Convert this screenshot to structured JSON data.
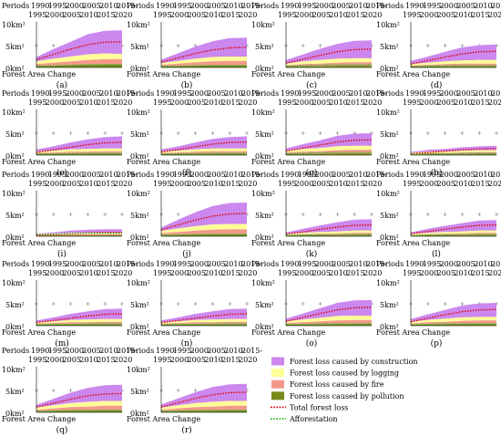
{
  "header": {
    "periods_label": "Periods",
    "period_ticks": [
      [
        "1990-",
        "1995"
      ],
      [
        "1995-",
        "2000"
      ],
      [
        "2000-",
        "2005"
      ],
      [
        "2005-",
        "2010"
      ],
      [
        "2010-",
        "2015"
      ],
      [
        "2015-",
        "2020"
      ]
    ]
  },
  "y_tick_labels": [
    "10km²",
    "5km²",
    "0km²"
  ],
  "x_axis_label": "Forest Area Change",
  "legend": {
    "position": "bottom-right",
    "entries": [
      {
        "label": "Forest loss caused by construction",
        "color": "#cc88ee",
        "kind": "area"
      },
      {
        "label": "Forest loss caused by logging",
        "color": "#ffff99",
        "kind": "area"
      },
      {
        "label": "Forest loss caused by fire",
        "color": "#f29a8a",
        "kind": "area"
      },
      {
        "label": "Forest loss caused by pollution",
        "color": "#7a8a1a",
        "kind": "area"
      },
      {
        "label": "Total forest loss",
        "color": "#dd0000",
        "kind": "dotted-line"
      },
      {
        "label": "Afforestation",
        "color": "#22bb22",
        "kind": "dotted-line"
      }
    ]
  },
  "chart_data": {
    "type": "area",
    "ylim": [
      0,
      10
    ],
    "series_names": [
      "Forest loss caused by pollution",
      "Forest loss caused by fire",
      "Forest loss caused by logging",
      "Forest loss caused by construction"
    ],
    "panels": [
      {
        "label": "(a)",
        "pollution": [
          0.3,
          0.4,
          0.5,
          0.6,
          0.7,
          0.7
        ],
        "fire": [
          0.5,
          0.7,
          0.9,
          1.1,
          1.2,
          1.2
        ],
        "logging": [
          0.6,
          0.9,
          1.1,
          1.3,
          1.3,
          1.2
        ],
        "construction": [
          1.0,
          2.2,
          3.4,
          4.6,
          5.2,
          5.4
        ],
        "total": [
          1.8,
          3.0,
          4.2,
          5.2,
          5.8,
          5.9
        ],
        "afforestation": [
          0.3,
          0.4,
          0.5,
          0.6,
          0.6,
          0.6
        ]
      },
      {
        "label": "(b)",
        "pollution": [
          0.2,
          0.3,
          0.4,
          0.5,
          0.5,
          0.5
        ],
        "fire": [
          0.4,
          0.6,
          0.8,
          0.9,
          1.0,
          1.0
        ],
        "logging": [
          0.4,
          0.6,
          0.8,
          1.0,
          1.0,
          1.0
        ],
        "construction": [
          0.8,
          1.8,
          2.8,
          3.6,
          4.2,
          4.3
        ],
        "total": [
          1.2,
          2.2,
          3.2,
          4.0,
          4.5,
          4.6
        ],
        "afforestation": [
          0.2,
          0.3,
          0.4,
          0.4,
          0.4,
          0.4
        ]
      },
      {
        "label": "(c)",
        "pollution": [
          0.2,
          0.3,
          0.3,
          0.4,
          0.4,
          0.4
        ],
        "fire": [
          0.3,
          0.5,
          0.6,
          0.7,
          0.8,
          0.8
        ],
        "logging": [
          0.4,
          0.6,
          0.8,
          0.9,
          0.9,
          0.9
        ],
        "construction": [
          0.8,
          1.6,
          2.6,
          3.4,
          4.0,
          4.1
        ],
        "total": [
          1.0,
          1.9,
          2.8,
          3.6,
          4.1,
          4.2
        ],
        "afforestation": [
          0.3,
          0.4,
          0.5,
          0.6,
          0.6,
          0.6
        ]
      },
      {
        "label": "(d)",
        "pollution": [
          0.2,
          0.2,
          0.3,
          0.3,
          0.3,
          0.3
        ],
        "fire": [
          0.3,
          0.4,
          0.5,
          0.6,
          0.6,
          0.6
        ],
        "logging": [
          0.3,
          0.5,
          0.6,
          0.7,
          0.8,
          0.8
        ],
        "construction": [
          0.7,
          1.4,
          2.2,
          3.0,
          3.4,
          3.6
        ],
        "total": [
          0.8,
          1.6,
          2.4,
          3.1,
          3.6,
          3.7
        ],
        "afforestation": [
          0.2,
          0.3,
          0.4,
          0.4,
          0.4,
          0.4
        ]
      },
      {
        "label": "(e)",
        "pollution": [
          0.2,
          0.2,
          0.3,
          0.3,
          0.3,
          0.3
        ],
        "fire": [
          0.3,
          0.4,
          0.5,
          0.5,
          0.6,
          0.6
        ],
        "logging": [
          0.3,
          0.4,
          0.5,
          0.6,
          0.6,
          0.6
        ],
        "construction": [
          0.5,
          1.0,
          1.6,
          2.2,
          2.6,
          2.8
        ],
        "total": [
          0.6,
          1.2,
          1.8,
          2.4,
          2.8,
          2.9
        ],
        "afforestation": [
          0.2,
          0.3,
          0.3,
          0.4,
          0.4,
          0.4
        ]
      },
      {
        "label": "(f)",
        "pollution": [
          0.2,
          0.2,
          0.3,
          0.3,
          0.3,
          0.3
        ],
        "fire": [
          0.3,
          0.4,
          0.5,
          0.6,
          0.6,
          0.6
        ],
        "logging": [
          0.3,
          0.4,
          0.5,
          0.6,
          0.6,
          0.6
        ],
        "construction": [
          0.5,
          1.0,
          1.6,
          2.2,
          2.6,
          2.8
        ],
        "total": [
          0.7,
          1.3,
          1.9,
          2.5,
          2.9,
          3.0
        ],
        "afforestation": [
          0.2,
          0.3,
          0.3,
          0.4,
          0.4,
          0.4
        ]
      },
      {
        "label": "(g)",
        "pollution": [
          0.2,
          0.3,
          0.3,
          0.4,
          0.4,
          0.4
        ],
        "fire": [
          0.4,
          0.5,
          0.6,
          0.7,
          0.8,
          0.8
        ],
        "logging": [
          0.4,
          0.6,
          0.7,
          0.9,
          0.9,
          0.9
        ],
        "construction": [
          0.5,
          1.1,
          1.8,
          2.4,
          2.8,
          2.9
        ],
        "total": [
          0.9,
          1.6,
          2.3,
          3.0,
          3.4,
          3.5
        ],
        "afforestation": [
          0.3,
          0.4,
          0.5,
          0.6,
          0.6,
          0.6
        ]
      },
      {
        "label": "(h)",
        "pollution": [
          0.1,
          0.2,
          0.2,
          0.2,
          0.3,
          0.3
        ],
        "fire": [
          0.2,
          0.3,
          0.3,
          0.4,
          0.4,
          0.4
        ],
        "logging": [
          0.2,
          0.3,
          0.3,
          0.4,
          0.4,
          0.4
        ],
        "construction": [
          0.2,
          0.4,
          0.6,
          0.8,
          0.9,
          1.0
        ],
        "total": [
          0.3,
          0.6,
          0.9,
          1.2,
          1.4,
          1.5
        ],
        "afforestation": [
          0.2,
          0.3,
          0.3,
          0.4,
          0.4,
          0.4
        ]
      },
      {
        "label": "(i)",
        "pollution": [
          0.1,
          0.2,
          0.2,
          0.2,
          0.2,
          0.2
        ],
        "fire": [
          0.2,
          0.2,
          0.3,
          0.3,
          0.3,
          0.3
        ],
        "logging": [
          0.2,
          0.2,
          0.3,
          0.3,
          0.3,
          0.3
        ],
        "construction": [
          0.1,
          0.3,
          0.5,
          0.7,
          0.8,
          0.8
        ],
        "total": [
          0.2,
          0.4,
          0.6,
          0.8,
          0.9,
          0.9
        ],
        "afforestation": [
          0.4,
          0.5,
          0.6,
          0.7,
          0.7,
          0.7
        ]
      },
      {
        "label": "(j)",
        "pollution": [
          0.2,
          0.3,
          0.4,
          0.5,
          0.5,
          0.5
        ],
        "fire": [
          0.5,
          0.7,
          0.9,
          1.0,
          1.1,
          1.1
        ],
        "logging": [
          0.5,
          0.8,
          1.0,
          1.2,
          1.2,
          1.2
        ],
        "construction": [
          0.8,
          2.0,
          3.2,
          4.2,
          4.8,
          4.9
        ],
        "total": [
          1.5,
          2.6,
          3.7,
          4.6,
          5.1,
          5.2
        ],
        "afforestation": [
          0.2,
          0.3,
          0.4,
          0.4,
          0.4,
          0.4
        ]
      },
      {
        "label": "(k)",
        "pollution": [
          0.1,
          0.2,
          0.2,
          0.2,
          0.3,
          0.3
        ],
        "fire": [
          0.2,
          0.3,
          0.4,
          0.4,
          0.5,
          0.5
        ],
        "logging": [
          0.2,
          0.3,
          0.4,
          0.5,
          0.5,
          0.5
        ],
        "construction": [
          0.4,
          0.9,
          1.5,
          2.1,
          2.5,
          2.6
        ],
        "total": [
          0.5,
          1.0,
          1.6,
          2.1,
          2.5,
          2.6
        ],
        "afforestation": [
          0.2,
          0.3,
          0.3,
          0.4,
          0.4,
          0.4
        ]
      },
      {
        "label": "(l)",
        "pollution": [
          0.1,
          0.2,
          0.2,
          0.2,
          0.3,
          0.3
        ],
        "fire": [
          0.2,
          0.3,
          0.4,
          0.4,
          0.5,
          0.5
        ],
        "logging": [
          0.2,
          0.3,
          0.4,
          0.5,
          0.5,
          0.5
        ],
        "construction": [
          0.4,
          0.9,
          1.4,
          1.9,
          2.3,
          2.4
        ],
        "total": [
          0.6,
          1.1,
          1.6,
          2.1,
          2.5,
          2.6
        ],
        "afforestation": [
          0.2,
          0.3,
          0.3,
          0.4,
          0.4,
          0.4
        ]
      },
      {
        "label": "(m)",
        "pollution": [
          0.2,
          0.2,
          0.3,
          0.3,
          0.3,
          0.3
        ],
        "fire": [
          0.3,
          0.4,
          0.5,
          0.5,
          0.6,
          0.6
        ],
        "logging": [
          0.3,
          0.4,
          0.5,
          0.6,
          0.6,
          0.6
        ],
        "construction": [
          0.4,
          0.9,
          1.4,
          1.9,
          2.3,
          2.4
        ],
        "total": [
          0.7,
          1.2,
          1.7,
          2.2,
          2.6,
          2.7
        ],
        "afforestation": [
          0.2,
          0.3,
          0.3,
          0.4,
          0.4,
          0.4
        ]
      },
      {
        "label": "(n)",
        "pollution": [
          0.2,
          0.2,
          0.3,
          0.3,
          0.3,
          0.3
        ],
        "fire": [
          0.3,
          0.4,
          0.5,
          0.5,
          0.6,
          0.6
        ],
        "logging": [
          0.3,
          0.4,
          0.5,
          0.6,
          0.6,
          0.6
        ],
        "construction": [
          0.4,
          0.9,
          1.4,
          1.9,
          2.3,
          2.4
        ],
        "total": [
          0.7,
          1.2,
          1.7,
          2.2,
          2.6,
          2.7
        ],
        "afforestation": [
          0.2,
          0.3,
          0.3,
          0.4,
          0.4,
          0.4
        ]
      },
      {
        "label": "(o)",
        "pollution": [
          0.2,
          0.3,
          0.3,
          0.4,
          0.4,
          0.4
        ],
        "fire": [
          0.4,
          0.5,
          0.7,
          0.8,
          0.9,
          0.9
        ],
        "logging": [
          0.4,
          0.6,
          0.8,
          1.0,
          1.0,
          1.0
        ],
        "construction": [
          0.6,
          1.4,
          2.2,
          3.0,
          3.5,
          3.6
        ],
        "total": [
          1.0,
          1.9,
          2.8,
          3.6,
          4.1,
          4.2
        ],
        "afforestation": [
          0.2,
          0.3,
          0.4,
          0.4,
          0.4,
          0.4
        ]
      },
      {
        "label": "(p)",
        "pollution": [
          0.2,
          0.3,
          0.3,
          0.4,
          0.4,
          0.4
        ],
        "fire": [
          0.3,
          0.5,
          0.6,
          0.7,
          0.8,
          0.8
        ],
        "logging": [
          0.4,
          0.5,
          0.7,
          0.8,
          0.8,
          0.8
        ],
        "construction": [
          0.6,
          1.3,
          2.0,
          2.7,
          3.1,
          3.2
        ],
        "total": [
          0.9,
          1.7,
          2.5,
          3.2,
          3.6,
          3.7
        ],
        "afforestation": [
          0.2,
          0.3,
          0.4,
          0.4,
          0.4,
          0.4
        ]
      },
      {
        "label": "(q)",
        "pollution": [
          0.2,
          0.3,
          0.4,
          0.4,
          0.5,
          0.5
        ],
        "fire": [
          0.4,
          0.6,
          0.8,
          0.9,
          1.0,
          1.0
        ],
        "logging": [
          0.5,
          0.7,
          0.9,
          1.1,
          1.1,
          1.1
        ],
        "construction": [
          0.6,
          1.5,
          2.4,
          3.2,
          3.6,
          3.7
        ],
        "total": [
          1.2,
          2.1,
          3.0,
          3.8,
          4.2,
          4.3
        ],
        "afforestation": [
          0.2,
          0.3,
          0.4,
          0.4,
          0.4,
          0.4
        ]
      },
      {
        "label": "(r)",
        "pollution": [
          0.2,
          0.3,
          0.4,
          0.4,
          0.5,
          0.5
        ],
        "fire": [
          0.4,
          0.6,
          0.8,
          0.9,
          1.0,
          1.0
        ],
        "logging": [
          0.5,
          0.7,
          0.9,
          1.1,
          1.1,
          1.1
        ],
        "construction": [
          0.7,
          1.6,
          2.5,
          3.4,
          3.8,
          3.9
        ],
        "total": [
          1.2,
          2.2,
          3.2,
          4.0,
          4.5,
          4.6
        ],
        "afforestation": [
          0.2,
          0.3,
          0.4,
          0.4,
          0.4,
          0.4
        ]
      }
    ]
  }
}
